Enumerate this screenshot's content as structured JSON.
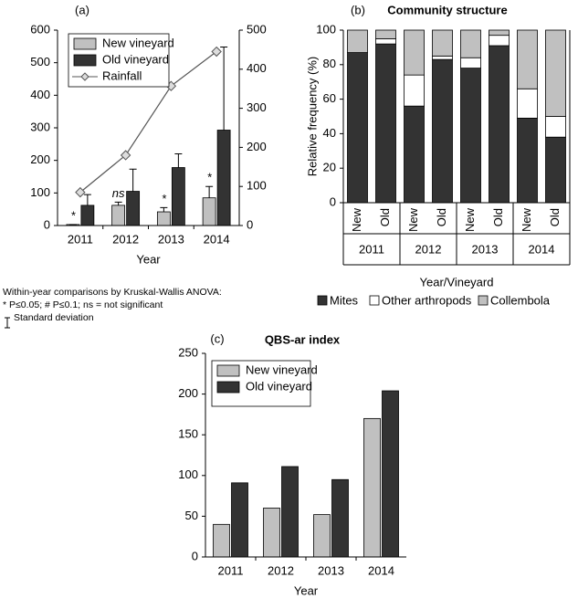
{
  "chart_data": [
    {
      "type": "bar",
      "label": "(a)",
      "xlabel": "Year",
      "categories": [
        "2011",
        "2012",
        "2013",
        "2014"
      ],
      "series": [
        {
          "name": "New vineyard",
          "color": "#c0c0c0",
          "values": [
            3,
            62,
            42,
            85
          ],
          "errors": [
            0,
            10,
            13,
            35
          ]
        },
        {
          "name": "Old vineyard",
          "color": "#333333",
          "values": [
            62,
            105,
            178,
            293
          ],
          "errors": [
            33,
            68,
            42,
            255
          ]
        },
        {
          "name": "Rainfall",
          "type": "line",
          "color": "#555555",
          "axis": "y2",
          "values": [
            85,
            180,
            357,
            445
          ]
        }
      ],
      "ylim": [
        0,
        600
      ],
      "yticks": [
        0,
        100,
        200,
        300,
        400,
        500,
        600
      ],
      "y2lim": [
        0,
        500
      ],
      "y2ticks": [
        0,
        100,
        200,
        300,
        400,
        500
      ],
      "legend": "upper left",
      "grid": false,
      "annotations": [
        {
          "category": "2011",
          "text": "*"
        },
        {
          "category": "2012",
          "text": "ns"
        },
        {
          "category": "2013",
          "text": "*"
        },
        {
          "category": "2014",
          "text": "*"
        }
      ],
      "notes": [
        "Within-year comparisons by Kruskal-Wallis ANOVA:",
        "* P≤0.05; # P≤0.1; ns = not significant",
        "Standard deviation"
      ]
    },
    {
      "type": "stacked_bar",
      "label": "(b)",
      "title": "Community structure",
      "ylabel": "Relative frequency (%)",
      "xlabel": "Year/Vineyard",
      "categories": [
        "New",
        "Old",
        "New",
        "Old",
        "New",
        "Old",
        "New",
        "Old"
      ],
      "groups": [
        "2011",
        "2012",
        "2013",
        "2014"
      ],
      "series": [
        {
          "name": "Mites",
          "color": "#333333",
          "values": [
            87,
            92,
            56,
            83,
            78,
            91,
            49,
            38
          ]
        },
        {
          "name": "Other arthropods",
          "color": "#ffffff",
          "values": [
            0,
            3,
            18,
            2,
            6,
            6,
            17,
            12
          ]
        },
        {
          "name": "Collembola",
          "color": "#c0c0c0",
          "values": [
            13,
            5,
            26,
            15,
            16,
            3,
            34,
            50
          ]
        }
      ],
      "ylim": [
        0,
        100
      ],
      "yticks": [
        0,
        20,
        40,
        60,
        80,
        100
      ],
      "legend": "bottom",
      "grid": false
    },
    {
      "type": "bar",
      "label": "(c)",
      "title": "QBS-ar index",
      "xlabel": "Year",
      "categories": [
        "2011",
        "2012",
        "2013",
        "2014"
      ],
      "series": [
        {
          "name": "New vineyard",
          "color": "#c0c0c0",
          "values": [
            40,
            60,
            52,
            170
          ]
        },
        {
          "name": "Old vineyard",
          "color": "#333333",
          "values": [
            91,
            111,
            95,
            204
          ]
        }
      ],
      "ylim": [
        0,
        250
      ],
      "yticks": [
        0,
        50,
        100,
        150,
        200,
        250
      ],
      "legend": "upper left",
      "grid": false
    }
  ]
}
